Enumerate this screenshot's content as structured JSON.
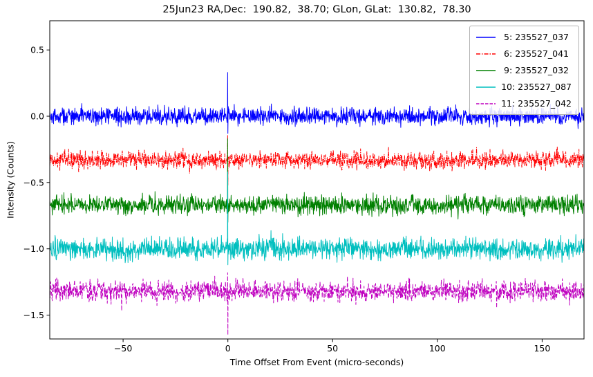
{
  "chart_data": {
    "type": "line",
    "title": "25Jun23 RA,Dec:  190.82,  38.70; GLon, GLat:  130.82,  78.30",
    "xlabel": "Time Offset From Event (micro-seconds)",
    "ylabel": "Intensity (Counts)",
    "xlim": [
      -85,
      170
    ],
    "ylim": [
      -1.68,
      0.72
    ],
    "xticks": [
      -50,
      0,
      50,
      100,
      150
    ],
    "yticks": [
      0.5,
      0.0,
      -0.5,
      -1.0,
      -1.5
    ],
    "grid": false,
    "legend_position": "upper right",
    "description": "Five dedispersed noise time-series traces, vertically offset for clarity; each shows a transient pulse spike at time offset 0 micro-seconds.",
    "series": [
      {
        "label": " 5: 235527_037",
        "color": "#0000ff",
        "linestyle": "solid",
        "baseline": 0.0,
        "noise_amp": 0.055,
        "spike_max": 0.33,
        "spike_min": -0.13
      },
      {
        "label": " 6: 235527_041",
        "color": "#ff0000",
        "linestyle": "dashdot",
        "baseline": -0.33,
        "noise_amp": 0.055,
        "spike_max": -0.14,
        "spike_min": -0.52
      },
      {
        "label": " 9: 235527_032",
        "color": "#008000",
        "linestyle": "solid",
        "baseline": -0.67,
        "noise_amp": 0.06,
        "spike_max": -0.17,
        "spike_min": -0.8
      },
      {
        "label": "10: 235527_087",
        "color": "#00bfbf",
        "linestyle": "solid",
        "baseline": -1.0,
        "noise_amp": 0.07,
        "spike_max": -0.42,
        "spike_min": -1.12
      },
      {
        "label": "11: 235527_042",
        "color": "#bf00bf",
        "linestyle": "dashed",
        "baseline": -1.32,
        "noise_amp": 0.065,
        "spike_max": -1.18,
        "spike_min": -1.65
      }
    ]
  }
}
